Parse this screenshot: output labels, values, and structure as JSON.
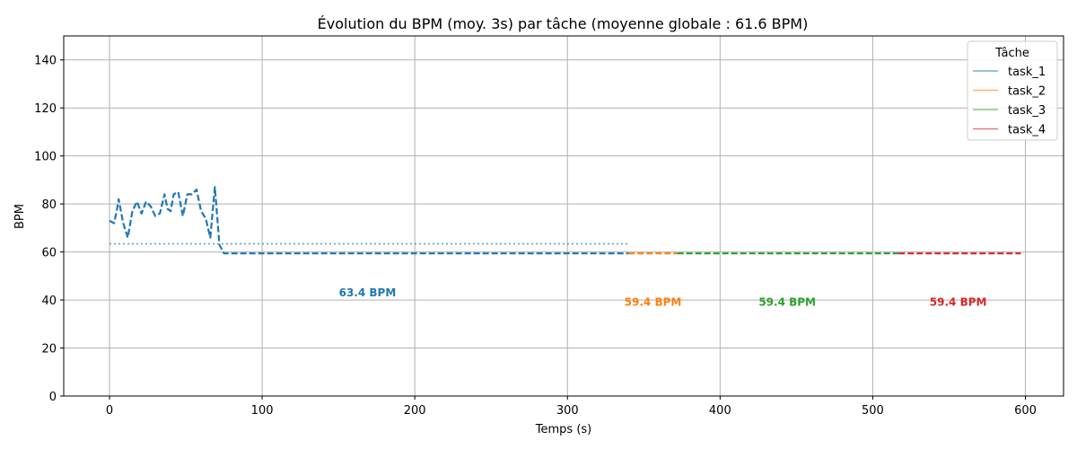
{
  "chart_data": {
    "type": "line",
    "title": "Évolution du BPM (moy. 3s) par tâche (moyenne globale : 61.6 BPM)",
    "xlabel": "Temps (s)",
    "ylabel": "BPM",
    "xlim": [
      -30,
      625
    ],
    "ylim": [
      0,
      150
    ],
    "xticks": [
      0,
      100,
      200,
      300,
      400,
      500,
      600
    ],
    "yticks": [
      0,
      20,
      40,
      60,
      80,
      100,
      120,
      140
    ],
    "grid": true,
    "legend": {
      "title": "Tâche",
      "placement": "top-right"
    },
    "series": [
      {
        "name": "task_1",
        "color": "#1f77b4",
        "mean": 63.4,
        "mean_label": "63.4 BPM",
        "mean_range": [
          0,
          340
        ],
        "label_pos": [
          169,
          43
        ],
        "points": [
          [
            0,
            73
          ],
          [
            3,
            72
          ],
          [
            5,
            78
          ],
          [
            6,
            82
          ],
          [
            9,
            72
          ],
          [
            12,
            66
          ],
          [
            15,
            77
          ],
          [
            18,
            81
          ],
          [
            21,
            76
          ],
          [
            24,
            81
          ],
          [
            27,
            79
          ],
          [
            30,
            75
          ],
          [
            33,
            76
          ],
          [
            36,
            84
          ],
          [
            38,
            78
          ],
          [
            40,
            77
          ],
          [
            42,
            84
          ],
          [
            45,
            85
          ],
          [
            48,
            75
          ],
          [
            51,
            84
          ],
          [
            54,
            84
          ],
          [
            57,
            86
          ],
          [
            60,
            77
          ],
          [
            63,
            74
          ],
          [
            66,
            66
          ],
          [
            69,
            87
          ],
          [
            72,
            63
          ],
          [
            75,
            59.4
          ],
          [
            340,
            59.4
          ]
        ]
      },
      {
        "name": "task_2",
        "color": "#ff7f0e",
        "mean": 59.4,
        "mean_label": "59.4 BPM",
        "mean_range": [
          340,
          372
        ],
        "label_pos": [
          356,
          39
        ],
        "points": [
          [
            340,
            59.4
          ],
          [
            372,
            59.4
          ]
        ]
      },
      {
        "name": "task_3",
        "color": "#2ca02c",
        "mean": 59.4,
        "mean_label": "59.4 BPM",
        "mean_range": [
          372,
          517
        ],
        "label_pos": [
          444,
          39
        ],
        "points": [
          [
            372,
            59.4
          ],
          [
            517,
            59.4
          ]
        ]
      },
      {
        "name": "task_4",
        "color": "#d62728",
        "mean": 59.4,
        "mean_label": "59.4 BPM",
        "mean_range": [
          517,
          597
        ],
        "label_pos": [
          556,
          39
        ],
        "points": [
          [
            517,
            59.4
          ],
          [
            597,
            59.4
          ]
        ]
      }
    ]
  }
}
